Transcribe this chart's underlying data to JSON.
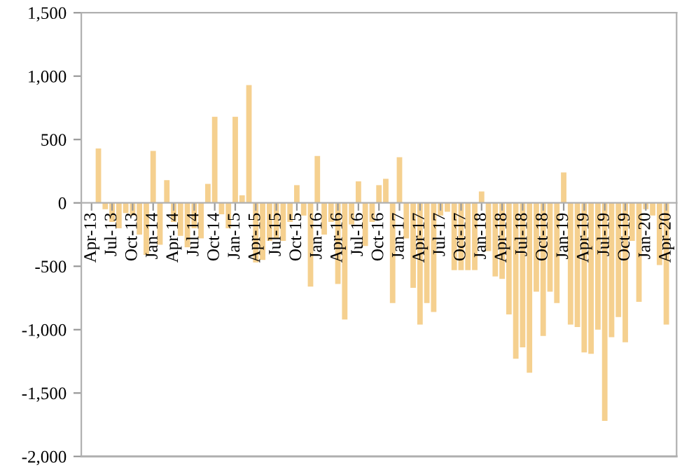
{
  "chart_data": {
    "type": "bar",
    "categories": [
      "Apr-13",
      null,
      null,
      "Jul-13",
      null,
      null,
      "Oct-13",
      null,
      null,
      "Jan-14",
      null,
      null,
      "Apr-14",
      null,
      null,
      "Jul-14",
      null,
      null,
      "Oct-14",
      null,
      null,
      "Jan-15",
      null,
      null,
      "Apr-15",
      null,
      null,
      "Jul-15",
      null,
      null,
      "Oct-15",
      null,
      null,
      "Jan-16",
      null,
      null,
      "Apr-16",
      null,
      null,
      "Jul-16",
      null,
      null,
      "Oct-16",
      null,
      null,
      "Jan-17",
      null,
      null,
      "Apr-17",
      null,
      null,
      "Jul-17",
      null,
      null,
      "Oct-17",
      null,
      null,
      "Jan-18",
      null,
      null,
      "Apr-18",
      null,
      null,
      "Jul-18",
      null,
      null,
      "Oct-18",
      null,
      null,
      "Jan-19",
      null,
      null,
      "Apr-19",
      null,
      null,
      "Jul-19",
      null,
      null,
      "Oct-19",
      null,
      null,
      "Jan-20",
      null,
      null,
      "Apr-20"
    ],
    "values": [
      0,
      430,
      -50,
      -150,
      -200,
      -80,
      -100,
      -250,
      -410,
      410,
      -330,
      180,
      -150,
      -260,
      -350,
      -200,
      -280,
      150,
      680,
      -90,
      -200,
      680,
      60,
      930,
      -470,
      -450,
      -300,
      -280,
      -300,
      -150,
      140,
      -100,
      -660,
      370,
      -250,
      -150,
      -640,
      -920,
      -170,
      170,
      -340,
      -150,
      140,
      190,
      -790,
      360,
      -280,
      -670,
      -960,
      -790,
      -860,
      -100,
      -70,
      -530,
      -530,
      -530,
      -530,
      90,
      -380,
      -580,
      -600,
      -880,
      -1230,
      -1140,
      -1340,
      -700,
      -1050,
      -700,
      -790,
      240,
      -960,
      -980,
      -1180,
      -1190,
      -1000,
      -1720,
      -1060,
      -900,
      -1100,
      -300,
      -780,
      -50,
      -100,
      -490,
      -960
    ],
    "color": "#f5d08f",
    "ylim": [
      -2000,
      1500
    ],
    "yticks": [
      {
        "value": -2000,
        "label": "-2,000"
      },
      {
        "value": -1500,
        "label": "-1,500"
      },
      {
        "value": -1000,
        "label": "-1,000"
      },
      -500,
      0,
      500,
      {
        "value": 1000,
        "label": "1,000"
      },
      {
        "value": 1500,
        "label": "1,500"
      }
    ]
  }
}
